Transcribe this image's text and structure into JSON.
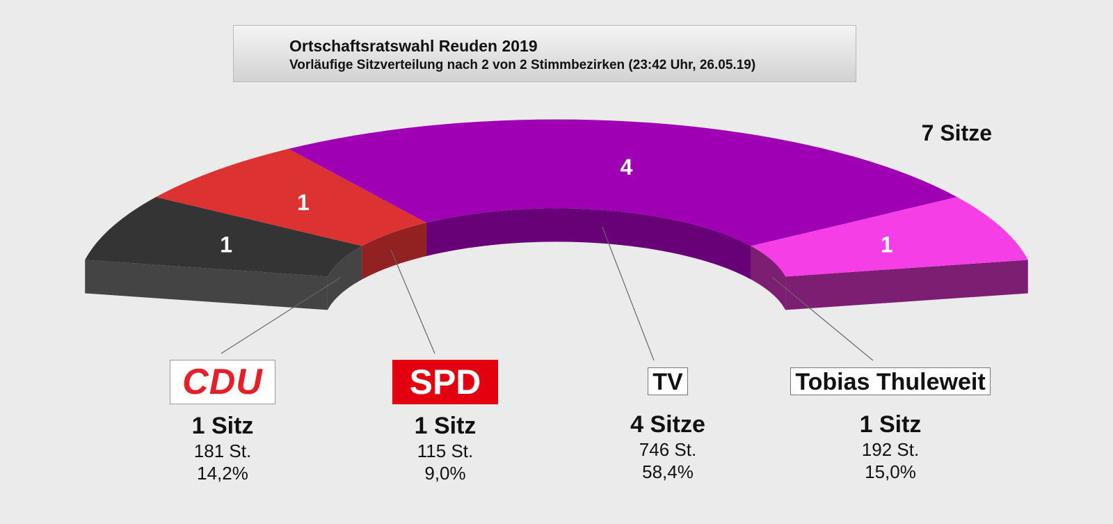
{
  "header": {
    "title": "Ortschaftsratswahl Reuden 2019",
    "subtitle": "Vorläufige Sitzverteilung nach 2 von 2 Stimmbezirken (23:42 Uhr, 26.05.19)"
  },
  "total_label": "7 Sitze",
  "chart_data": {
    "type": "pie",
    "title": "Ortschaftsratswahl Reuden 2019",
    "subtitle": "Vorläufige Sitzverteilung nach 2 von 2 Stimmbezirken (23:42 Uhr, 26.05.19)",
    "style": "3d-half-ring",
    "total_seats": 7,
    "total_label": "7 Sitze",
    "categories": [
      "CDU",
      "SPD",
      "TV",
      "Tobias Thuleweit"
    ],
    "values": [
      1,
      1,
      4,
      1
    ],
    "series": [
      {
        "name": "CDU",
        "seats": 1,
        "seats_label": "1 Sitz",
        "votes": 181,
        "votes_label": "181 St.",
        "percent": 14.2,
        "percent_label": "14,2%",
        "color": "#343434",
        "side_color": "#444444"
      },
      {
        "name": "SPD",
        "seats": 1,
        "seats_label": "1 Sitz",
        "votes": 115,
        "votes_label": "115 St.",
        "percent": 9.0,
        "percent_label": "9,0%",
        "color": "#dc3232",
        "side_color": "#922222"
      },
      {
        "name": "TV",
        "seats": 4,
        "seats_label": "4 Sitze",
        "votes": 746,
        "votes_label": "746 St.",
        "percent": 58.4,
        "percent_label": "58,4%",
        "color": "#a000b4",
        "side_color": "#680078"
      },
      {
        "name": "Tobias Thuleweit",
        "seats": 1,
        "seats_label": "1 Sitz",
        "votes": 192,
        "votes_label": "192 St.",
        "percent": 15.0,
        "percent_label": "15,0%",
        "color": "#f53ee6",
        "side_color": "#7c1f73"
      }
    ]
  },
  "parties": [
    {
      "logo_text": "CDU",
      "seats_label": "1 Sitz",
      "votes_label": "181 St.",
      "percent_label": "14,2%"
    },
    {
      "logo_text": "SPD",
      "seats_label": "1 Sitz",
      "votes_label": "115 St.",
      "percent_label": "9,0%"
    },
    {
      "logo_text": "TV",
      "seats_label": "4 Sitze",
      "votes_label": "746 St.",
      "percent_label": "58,4%"
    },
    {
      "logo_text": "Tobias Thuleweit",
      "seats_label": "1 Sitz",
      "votes_label": "192 St.",
      "percent_label": "15,0%"
    }
  ]
}
